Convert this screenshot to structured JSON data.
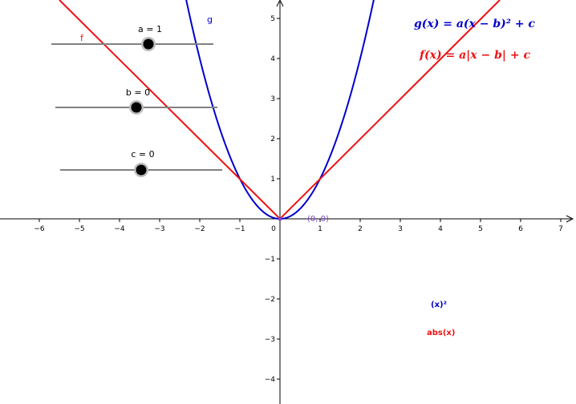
{
  "graph": {
    "x_ticks": [
      "−6",
      "−5",
      "−4",
      "−3",
      "−2",
      "−1",
      "0",
      "1",
      "2",
      "3",
      "4",
      "5",
      "6",
      "7"
    ],
    "y_ticks_pos": [
      "1",
      "2",
      "3",
      "4",
      "5"
    ],
    "y_ticks_neg": [
      "−1",
      "−2",
      "−3",
      "−4"
    ],
    "curve_labels": {
      "g": "g",
      "f": "f"
    },
    "vertex_label": "(0, 0)",
    "formula_g": "g(x) = a(x − b)² + c",
    "formula_f": "f(x) = a|x − b| + c",
    "button_square": "(x)²",
    "button_abs": "abs(x)"
  },
  "sliders": [
    {
      "name": "a",
      "label": "a = 1",
      "value": 1
    },
    {
      "name": "b",
      "label": "b = 0",
      "value": 0
    },
    {
      "name": "c",
      "label": "c = 0",
      "value": 0
    }
  ],
  "colors": {
    "parabola": "#0000cc",
    "absolute": "#ee1111",
    "vertex": "#7a44cc",
    "axis": "#000000",
    "slider_track": "#808080"
  }
}
